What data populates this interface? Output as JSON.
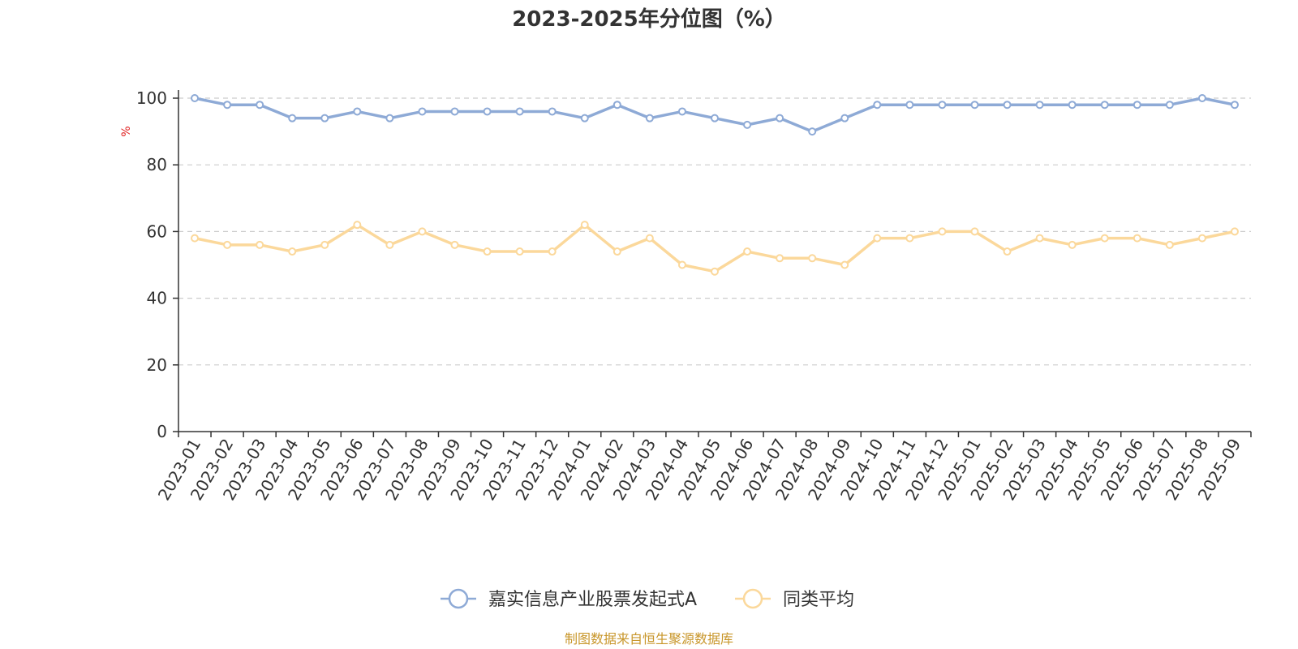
{
  "chart_data": {
    "type": "line",
    "title": "2023-2025年分位图（%）",
    "ylabel": "%",
    "ylim": [
      0,
      100
    ],
    "yticks": [
      0,
      20,
      40,
      60,
      80,
      100
    ],
    "grid": true,
    "legend_position": "bottom",
    "categories": [
      "2023-01",
      "2023-02",
      "2023-03",
      "2023-04",
      "2023-05",
      "2023-06",
      "2023-07",
      "2023-08",
      "2023-09",
      "2023-10",
      "2023-11",
      "2023-12",
      "2024-01",
      "2024-02",
      "2024-03",
      "2024-04",
      "2024-05",
      "2024-06",
      "2024-07",
      "2024-08",
      "2024-09",
      "2024-10",
      "2024-11",
      "2024-12",
      "2025-01",
      "2025-02",
      "2025-03",
      "2025-04",
      "2025-05",
      "2025-06",
      "2025-07",
      "2025-08",
      "2025-09"
    ],
    "series": [
      {
        "name": "嘉实信息产业股票发起式A",
        "color": "#8eaad6",
        "values": [
          100,
          98,
          98,
          94,
          94,
          96,
          94,
          96,
          96,
          96,
          96,
          96,
          94,
          98,
          94,
          96,
          94,
          92,
          94,
          90,
          94,
          98,
          98,
          98,
          98,
          98,
          98,
          98,
          98,
          98,
          98,
          100,
          98
        ]
      },
      {
        "name": "同类平均",
        "color": "#fbd89b",
        "values": [
          58,
          56,
          56,
          54,
          56,
          62,
          56,
          60,
          56,
          54,
          54,
          54,
          62,
          54,
          58,
          50,
          48,
          54,
          52,
          52,
          50,
          58,
          58,
          60,
          60,
          54,
          58,
          56,
          58,
          58,
          56,
          58,
          60
        ]
      }
    ]
  },
  "source": {
    "text": "制图数据来自恒生聚源数据库",
    "color": "#c8962a"
  },
  "colors": {
    "axis": "#333333",
    "grid": "#cccccc",
    "unit": "#e02020"
  }
}
